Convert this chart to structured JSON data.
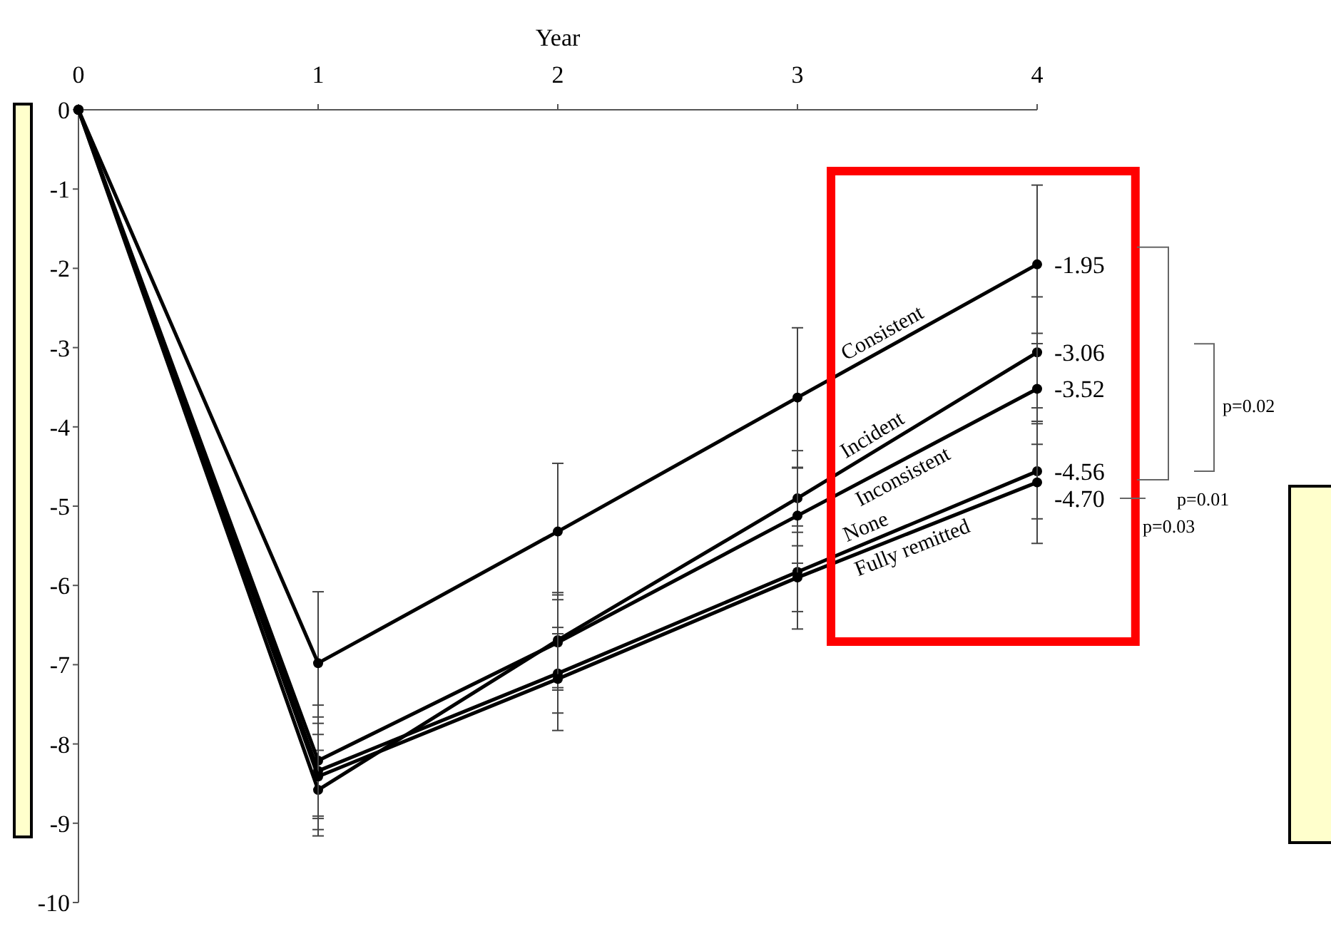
{
  "chart_data": {
    "type": "line",
    "xlabel": "Year",
    "x": [
      0,
      1,
      2,
      3,
      4
    ],
    "xlim": [
      0,
      4
    ],
    "xticks": [
      0,
      1,
      2,
      3,
      4
    ],
    "ylim": [
      -10,
      0
    ],
    "yticks": [
      0,
      -1,
      -2,
      -3,
      -4,
      -5,
      -6,
      -7,
      -8,
      -9,
      -10
    ],
    "grid": false,
    "legend": false,
    "marker": "circle",
    "line_style": "solid",
    "series": [
      {
        "name": "Consistent",
        "color": "#000000",
        "values": [
          0,
          -6.98,
          -5.32,
          -3.63,
          -1.95
        ],
        "errors": [
          null,
          0.9,
          0.86,
          0.88,
          1.0
        ],
        "value_labels": [
          null,
          null,
          null,
          null,
          "-1.95"
        ]
      },
      {
        "name": "Incident",
        "color": "#000000",
        "values": [
          0,
          -8.58,
          -6.69,
          -4.9,
          -3.06
        ],
        "errors": [
          null,
          0.5,
          0.6,
          0.6,
          0.7
        ],
        "value_labels": [
          null,
          null,
          null,
          null,
          "-3.06"
        ]
      },
      {
        "name": "Inconsistent",
        "color": "#000000",
        "values": [
          0,
          -8.21,
          -6.72,
          -5.12,
          -3.52
        ],
        "errors": [
          null,
          0.7,
          0.6,
          0.6,
          0.7
        ],
        "value_labels": [
          null,
          null,
          null,
          null,
          "-3.52"
        ]
      },
      {
        "name": "None",
        "color": "#000000",
        "values": [
          0,
          -8.34,
          -7.11,
          -5.83,
          -4.56
        ],
        "errors": [
          null,
          0.6,
          0.5,
          0.5,
          0.6
        ],
        "value_labels": [
          null,
          null,
          null,
          null,
          "-4.56"
        ]
      },
      {
        "name": "Fully remitted",
        "color": "#000000",
        "values": [
          0,
          -8.41,
          -7.18,
          -5.9,
          -4.7
        ],
        "errors": [
          null,
          0.75,
          0.65,
          0.65,
          0.77
        ],
        "value_labels": [
          null,
          null,
          null,
          null,
          "-4.70"
        ]
      }
    ],
    "annotations": [
      "p=0.02",
      "p=0.01",
      "p=0.03"
    ]
  }
}
